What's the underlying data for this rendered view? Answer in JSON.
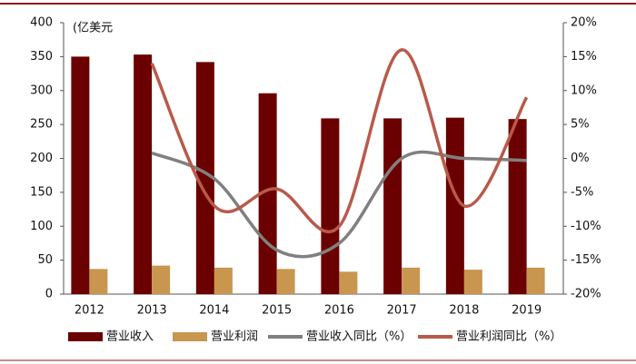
{
  "chart_data": {
    "type": "bar",
    "unit_label": "(亿美元",
    "categories": [
      "2012",
      "2013",
      "2014",
      "2015",
      "2016",
      "2017",
      "2018",
      "2019"
    ],
    "series": [
      {
        "name": "营业收入",
        "color": "#6b0000",
        "type": "bar",
        "values": [
          350,
          353,
          342,
          296,
          259,
          259,
          260,
          258
        ]
      },
      {
        "name": "营业利润",
        "color": "#c8964f",
        "type": "bar",
        "values": [
          37,
          42,
          39,
          37,
          33,
          39,
          36,
          39
        ]
      },
      {
        "name": "营业收入同比（%）",
        "color": "#808080",
        "type": "line",
        "axis": "y2",
        "values": [
          null,
          0.8,
          -3,
          -13.5,
          -12.5,
          0,
          0,
          -0.3
        ]
      },
      {
        "name": "营业利润同比（%）",
        "color": "#b85a4a",
        "type": "line",
        "axis": "y2",
        "values": [
          null,
          14,
          -7,
          -4.5,
          -10,
          16,
          -7,
          9
        ]
      }
    ],
    "ylim": [
      0,
      400
    ],
    "yticks": [
      0,
      50,
      100,
      150,
      200,
      250,
      300,
      350,
      400
    ],
    "y2lim": [
      -20,
      20
    ],
    "y2ticks": [
      {
        "value": -20,
        "label": "-20%"
      },
      {
        "value": -15,
        "label": "-15%"
      },
      {
        "value": -10,
        "label": "-10%"
      },
      {
        "value": -5,
        "label": "-5%"
      },
      {
        "value": 0,
        "label": "0%"
      },
      {
        "value": 5,
        "label": "5%"
      },
      {
        "value": 10,
        "label": "10%"
      },
      {
        "value": 15,
        "label": "15%"
      },
      {
        "value": 20,
        "label": "20%"
      }
    ],
    "legend": "bottom"
  }
}
